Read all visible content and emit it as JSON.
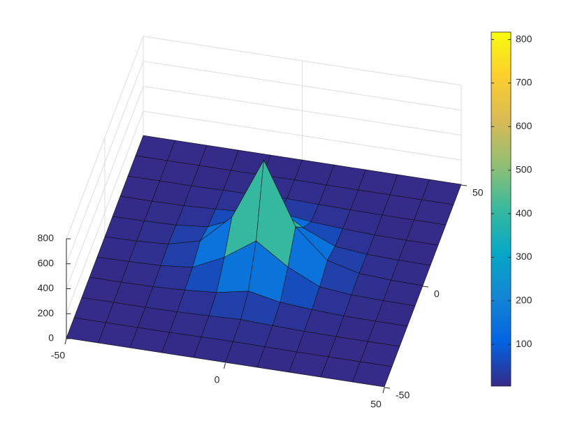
{
  "chart_data": {
    "type": "surface",
    "x": [
      -50,
      -40,
      -30,
      -20,
      -10,
      0,
      10,
      20,
      30,
      40,
      50
    ],
    "y": [
      -50,
      -40,
      -30,
      -20,
      -10,
      0,
      10,
      20,
      30,
      40,
      50
    ],
    "z": [
      [
        5,
        5,
        5,
        5,
        5,
        5,
        5,
        5,
        5,
        5,
        5
      ],
      [
        5,
        5,
        5,
        5,
        8,
        10,
        8,
        5,
        5,
        5,
        5
      ],
      [
        5,
        5,
        5,
        8,
        15,
        25,
        15,
        8,
        5,
        5,
        5
      ],
      [
        5,
        5,
        8,
        20,
        40,
        90,
        40,
        20,
        8,
        5,
        5
      ],
      [
        5,
        8,
        15,
        40,
        160,
        330,
        160,
        40,
        15,
        8,
        5
      ],
      [
        5,
        10,
        25,
        90,
        320,
        815,
        320,
        90,
        25,
        10,
        5
      ],
      [
        5,
        8,
        15,
        40,
        150,
        300,
        150,
        40,
        15,
        8,
        5
      ],
      [
        5,
        5,
        8,
        20,
        35,
        70,
        35,
        20,
        8,
        5,
        5
      ],
      [
        5,
        5,
        5,
        8,
        12,
        20,
        12,
        8,
        5,
        5,
        5
      ],
      [
        5,
        5,
        5,
        5,
        6,
        8,
        6,
        5,
        5,
        5,
        5
      ],
      [
        5,
        5,
        5,
        5,
        5,
        5,
        5,
        5,
        5,
        5,
        5
      ]
    ],
    "xlim": [
      -50,
      50
    ],
    "xticks": [
      -50,
      0,
      50
    ],
    "ylim": [
      -50,
      50
    ],
    "yticks": [
      -50,
      0,
      50
    ],
    "zlim": [
      0,
      800
    ],
    "zticks": [
      0,
      200,
      400,
      600,
      800
    ],
    "colormap": "parula",
    "clim": [
      4,
      817
    ],
    "cticks": [
      100,
      200,
      300,
      400,
      500,
      600,
      700,
      800
    ],
    "grid": true
  }
}
